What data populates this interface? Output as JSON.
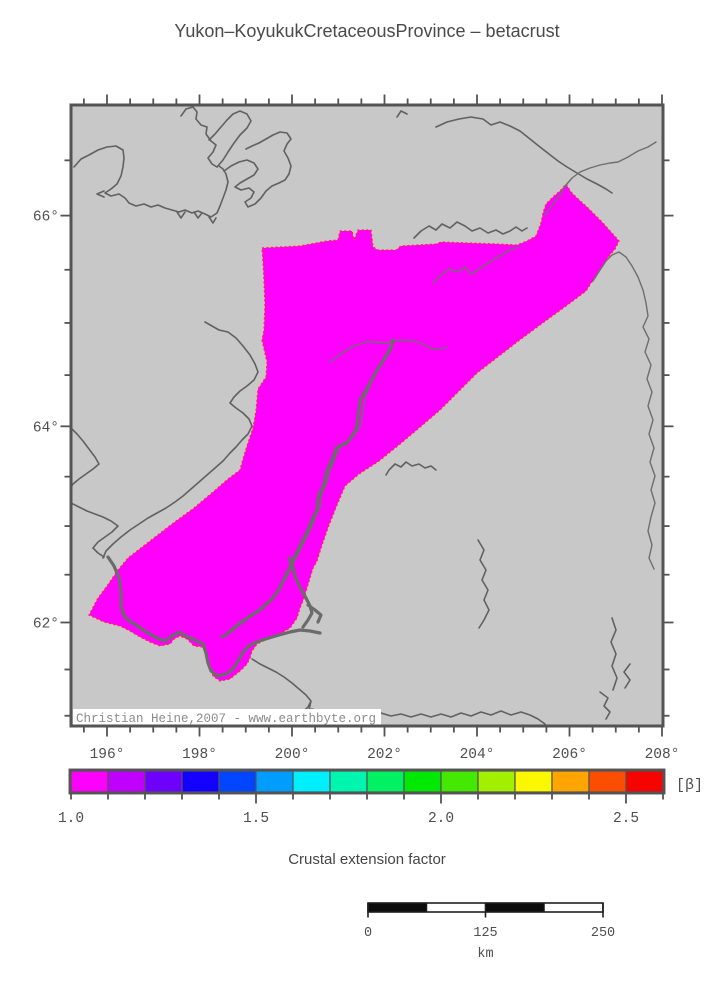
{
  "title": "Yukon–KoyukukCretaceousProvince – betacrust",
  "map": {
    "copyright": "Christian Heine,2007 - www.earthbyte.org",
    "background_color": "#c8c8c8",
    "frame_color": "#545454",
    "province_color": "#ff00ff",
    "province_outline_color": "#ff2b2b",
    "lon_ticks": {
      "values": [
        196,
        198,
        200,
        202,
        204,
        206,
        208
      ],
      "labels": [
        "196°",
        "198°",
        "200°",
        "202°",
        "204°",
        "206°",
        "208°"
      ]
    },
    "lat_ticks": {
      "values": [
        66,
        64,
        62
      ],
      "labels": [
        "66°",
        "64°",
        "62°"
      ]
    }
  },
  "colorbar": {
    "title": "Crustal extension factor",
    "unit_label": "[β]",
    "range": [
      1.0,
      2.6
    ],
    "cell_step": 0.1,
    "ticks": [
      {
        "value": 1.0,
        "label": "1.0"
      },
      {
        "value": 1.5,
        "label": "1.5"
      },
      {
        "value": 2.0,
        "label": "2.0"
      },
      {
        "value": 2.5,
        "label": "2.5"
      }
    ],
    "cell_colors": [
      "#ff00ff",
      "#bf00ff",
      "#6e00ff",
      "#1400ff",
      "#0045ff",
      "#009dff",
      "#00efff",
      "#00f6af",
      "#00f161",
      "#00e904",
      "#45e800",
      "#a2f000",
      "#fbf700",
      "#ffa400",
      "#fb4e00",
      "#f60400"
    ]
  },
  "scalebar": {
    "tick_labels": [
      "0",
      "125",
      "250"
    ],
    "unit": "km",
    "length_km": 250,
    "segment_colors": [
      "#0c0c0c",
      "#ffffff",
      "#0c0c0c",
      "#ffffff"
    ]
  }
}
